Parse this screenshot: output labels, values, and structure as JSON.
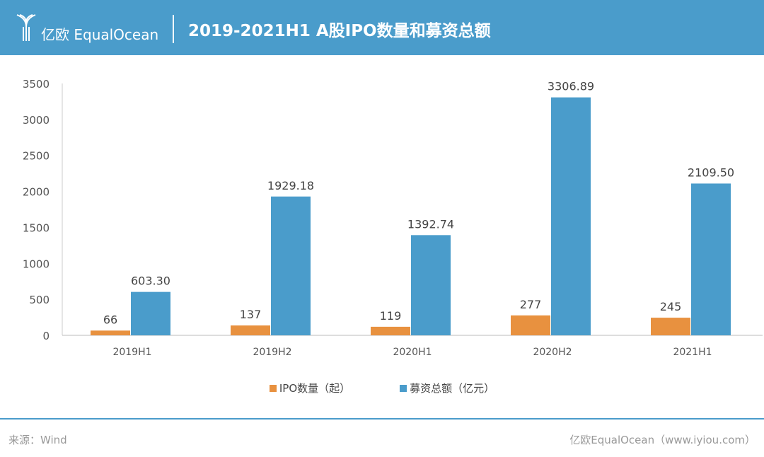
{
  "header": {
    "logo_text": "亿欧 EqualOcean",
    "title": "2019-2021H1 A股IPO数量和募资总额"
  },
  "chart_data": {
    "type": "bar",
    "title": "2019-2021H1 A股IPO数量和募资总额",
    "categories": [
      "2019H1",
      "2019H2",
      "2020H1",
      "2020H2",
      "2021H1"
    ],
    "series": [
      {
        "name": "IPO数量（起）",
        "color": "#e8913f",
        "values": [
          66,
          137,
          119,
          277,
          245
        ],
        "labels": [
          "66",
          "137",
          "119",
          "277",
          "245"
        ]
      },
      {
        "name": "募资总额（亿元）",
        "color": "#4a9ccb",
        "values": [
          603.3,
          1929.18,
          1392.74,
          3306.89,
          2109.5
        ],
        "labels": [
          "603.30",
          "1929.18",
          "1392.74",
          "3306.89",
          "2109.50"
        ]
      }
    ],
    "ylim": [
      0,
      3500
    ],
    "yticks": [
      "0",
      "500",
      "1000",
      "1500",
      "2000",
      "2500",
      "3000",
      "3500"
    ],
    "legend": "bottom"
  },
  "footer": {
    "source": "来源：Wind",
    "credit": "亿欧EqualOcean（www.iyiou.com）"
  }
}
